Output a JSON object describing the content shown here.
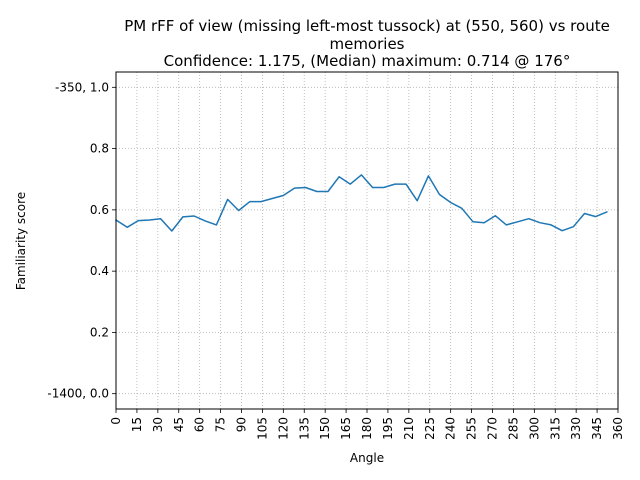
{
  "chart_data": {
    "type": "line",
    "title": [
      "PM rFF of view (missing left-most tussock) at (550, 560) vs route",
      "memories",
      "Confidence: 1.175, (Median) maximum: 0.714 @ 176°"
    ],
    "xlabel": "Angle",
    "ylabel": "Familiarity score",
    "xlim": [
      0,
      360
    ],
    "ylim": [
      -0.05,
      1.05
    ],
    "xticks": [
      0,
      15,
      30,
      45,
      60,
      75,
      90,
      105,
      120,
      135,
      150,
      165,
      180,
      195,
      210,
      225,
      240,
      255,
      270,
      285,
      300,
      315,
      330,
      345,
      360
    ],
    "xtick_labels": [
      "0",
      "15",
      "30",
      "45",
      "60",
      "75",
      "90",
      "105",
      "120",
      "135",
      "150",
      "165",
      "180",
      "195",
      "210",
      "225",
      "240",
      "255",
      "270",
      "285",
      "300",
      "315",
      "330",
      "345",
      "360"
    ],
    "yticks": [
      0.0,
      0.2,
      0.4,
      0.6,
      0.8,
      1.0
    ],
    "ytick_labels": [
      "-1400, 0.0",
      "0.2",
      "0.4",
      "0.6",
      "0.8",
      "-350, 1.0"
    ],
    "grid": true,
    "line_color": "#1f77b4",
    "series": [
      {
        "x": [
          0,
          8,
          16,
          24,
          32,
          40,
          48,
          56,
          64,
          72,
          80,
          88,
          96,
          104,
          112,
          120,
          128,
          136,
          144,
          152,
          160,
          168,
          176,
          184,
          192,
          200,
          208,
          216,
          224,
          232,
          240,
          248,
          256,
          264,
          272,
          280,
          288,
          296,
          304,
          312,
          320,
          328,
          336,
          344,
          352
        ],
        "y": [
          0.567,
          0.543,
          0.565,
          0.567,
          0.571,
          0.531,
          0.577,
          0.58,
          0.564,
          0.551,
          0.634,
          0.598,
          0.627,
          0.627,
          0.637,
          0.647,
          0.671,
          0.673,
          0.66,
          0.66,
          0.708,
          0.684,
          0.714,
          0.673,
          0.673,
          0.684,
          0.684,
          0.63,
          0.711,
          0.65,
          0.624,
          0.605,
          0.561,
          0.558,
          0.581,
          0.551,
          0.561,
          0.571,
          0.558,
          0.551,
          0.532,
          0.545,
          0.588,
          0.578,
          0.593
        ]
      }
    ]
  }
}
